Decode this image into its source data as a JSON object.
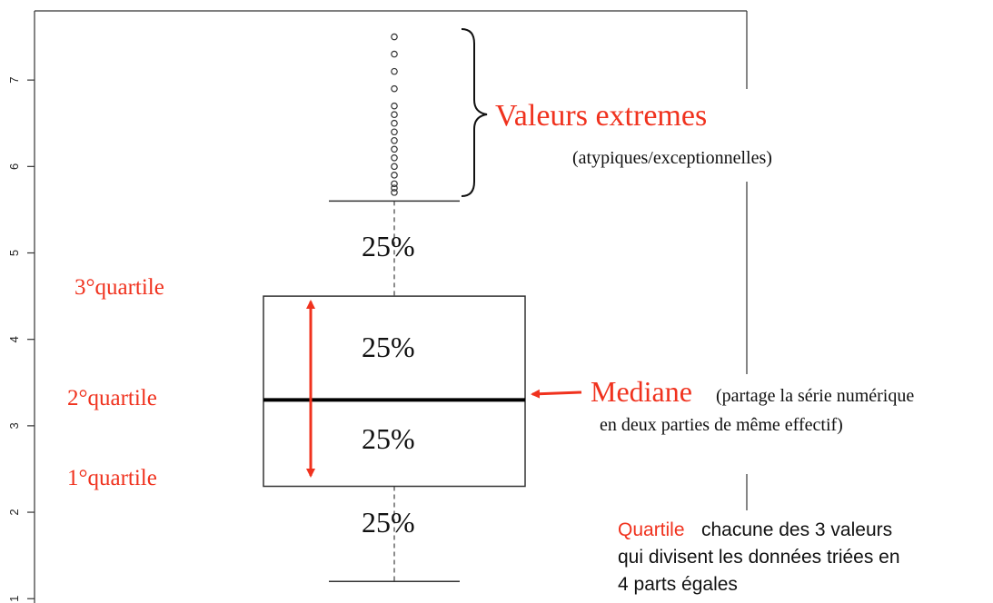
{
  "chart_data": {
    "type": "box",
    "ylim": [
      0.95,
      7.8
    ],
    "yticks": [
      1,
      2,
      3,
      4,
      5,
      6,
      7
    ],
    "box": {
      "whisker_low": 1.2,
      "q1": 2.3,
      "median": 3.3,
      "q3": 4.5,
      "whisker_high": 5.6,
      "outliers": [
        7.5,
        7.3,
        7.1,
        6.9,
        6.7,
        6.6,
        6.5,
        6.4,
        6.3,
        6.2,
        6.1,
        6.0,
        5.9,
        5.8,
        5.75,
        5.7
      ]
    },
    "annotations": {
      "extremes": "Valeurs extremes",
      "extremes_note": "(atypiques/exceptionnelles)",
      "pct_top": "25%",
      "pct_upper_box": "25%",
      "pct_lower_box": "25%",
      "pct_bottom": "25%",
      "q3_label": "3°quartile",
      "q2_label": "2°quartile",
      "q1_label": "1°quartile",
      "median": "Mediane",
      "median_note_1": "(partage la série numérique",
      "median_note_2": "en deux parties de même effectif)",
      "quartile_word": "Quartile",
      "quartile_def_1": "chacune des 3 valeurs",
      "quartile_def_2": "qui divisent les données triées en",
      "quartile_def_3": "4 parts égales"
    }
  }
}
